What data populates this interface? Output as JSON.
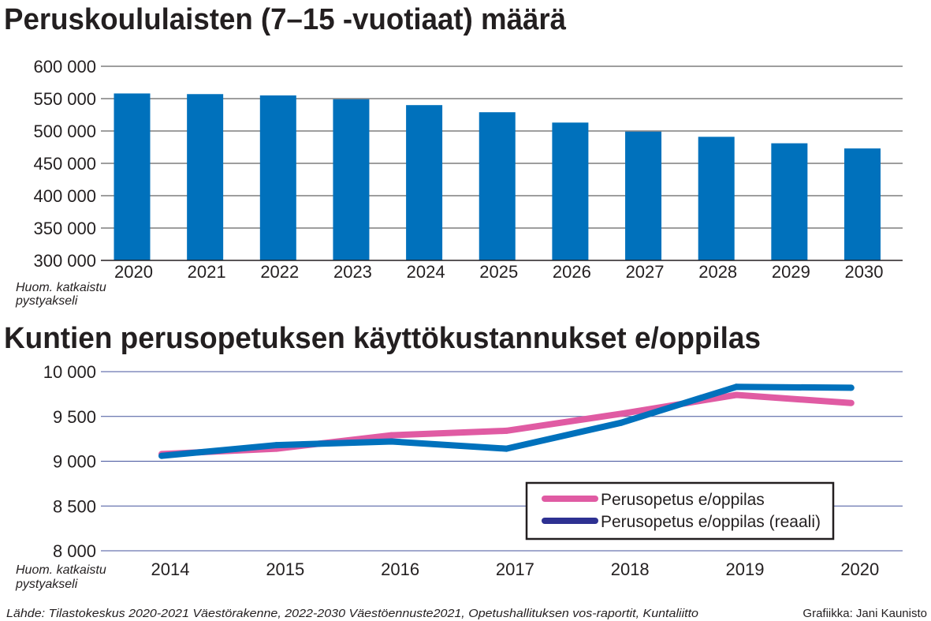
{
  "chart_data": [
    {
      "type": "bar",
      "title": "Peruskoululaisten (7–15 -vuotiaat) määrä",
      "categories": [
        "2020",
        "2021",
        "2022",
        "2023",
        "2024",
        "2025",
        "2026",
        "2027",
        "2028",
        "2029",
        "2030"
      ],
      "values": [
        558000,
        557000,
        555000,
        549000,
        540000,
        529000,
        513000,
        499000,
        491000,
        481000,
        473000
      ],
      "ylim": [
        300000,
        600000
      ],
      "yticks": [
        300000,
        350000,
        400000,
        450000,
        500000,
        550000,
        600000
      ],
      "ytick_labels": [
        "300 000",
        "350 000",
        "400 000",
        "450 000",
        "500 000",
        "550 000",
        "600 000"
      ],
      "xlabel": "",
      "ylabel": "",
      "grid": true,
      "color": "#0071bc",
      "note": [
        "Huom. katkaistu",
        "pystyakseli"
      ]
    },
    {
      "type": "line",
      "title": "Kuntien perusopetuksen käyttökustannukset e/oppilas",
      "x": [
        "2014",
        "2015",
        "2016",
        "2017",
        "2018",
        "2019",
        "2020"
      ],
      "series": [
        {
          "name": "Perusopetus e/oppilas",
          "color": "#e05ba3",
          "values": [
            9080,
            9140,
            9290,
            9340,
            9530,
            9740,
            9650
          ]
        },
        {
          "name": "Perusopetus e/oppilas (reaali)",
          "color": "#0071bc",
          "legend_color": "#2e3192",
          "values": [
            9060,
            9180,
            9220,
            9140,
            9430,
            9830,
            9820
          ]
        }
      ],
      "ylim": [
        8000,
        10000
      ],
      "yticks": [
        8000,
        8500,
        9000,
        9500,
        10000
      ],
      "ytick_labels": [
        "8 000",
        "8 500",
        "9 000",
        "9 500",
        "10 000"
      ],
      "xlabel": "",
      "ylabel": "",
      "grid": true,
      "legend": "inside-bottom-right",
      "note": [
        "Huom. katkaistu",
        "pystyakseli"
      ]
    }
  ],
  "footer": {
    "source": "Lähde: Tilastokeskus 2020-2021 Väestörakenne, 2022-2030 Väestöennuste2021, Opetushallituksen vos-raportit, Kuntaliitto",
    "credit": "Grafiikka: Jani Kaunisto"
  }
}
